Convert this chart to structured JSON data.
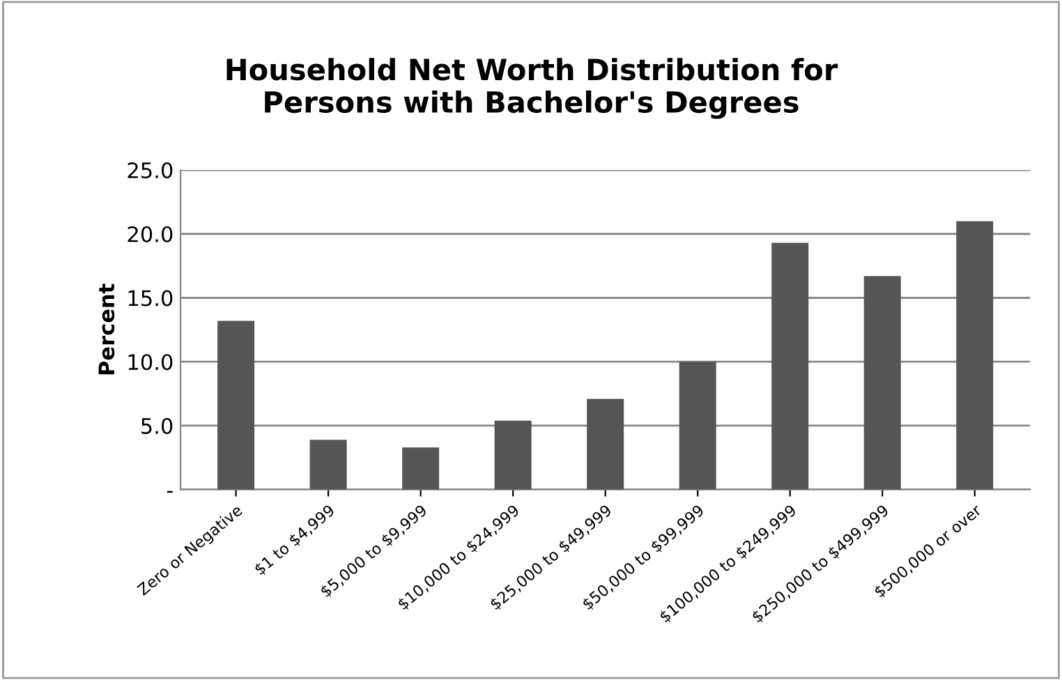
{
  "chart_data": {
    "type": "bar",
    "title": "Household Net Worth Distribution for\nPersons with Bachelor's Degrees",
    "ylabel": "Percent",
    "categories": [
      "Zero or Negative",
      "$1 to $4,999",
      "$5,000 to $9,999",
      "$10,000 to $24,999",
      "$25,000 to $49,999",
      "$50,000 to $99,999",
      "$100,000 to $249,999",
      "$250,000 to $499,999",
      "$500,000 or over"
    ],
    "values": [
      13.2,
      3.9,
      3.3,
      5.4,
      7.1,
      10.0,
      19.3,
      16.7,
      21.0
    ],
    "color": "#555555",
    "ylim": [
      0,
      25
    ],
    "yticks": [
      {
        "value": 0,
        "label": "-"
      },
      {
        "value": 5,
        "label": "5.0"
      },
      {
        "value": 10,
        "label": "10.0"
      },
      {
        "value": 15,
        "label": "15.0"
      },
      {
        "value": 20,
        "label": "20.0"
      },
      {
        "value": 25,
        "label": "25.0"
      }
    ],
    "grid": "y",
    "legend": false
  }
}
